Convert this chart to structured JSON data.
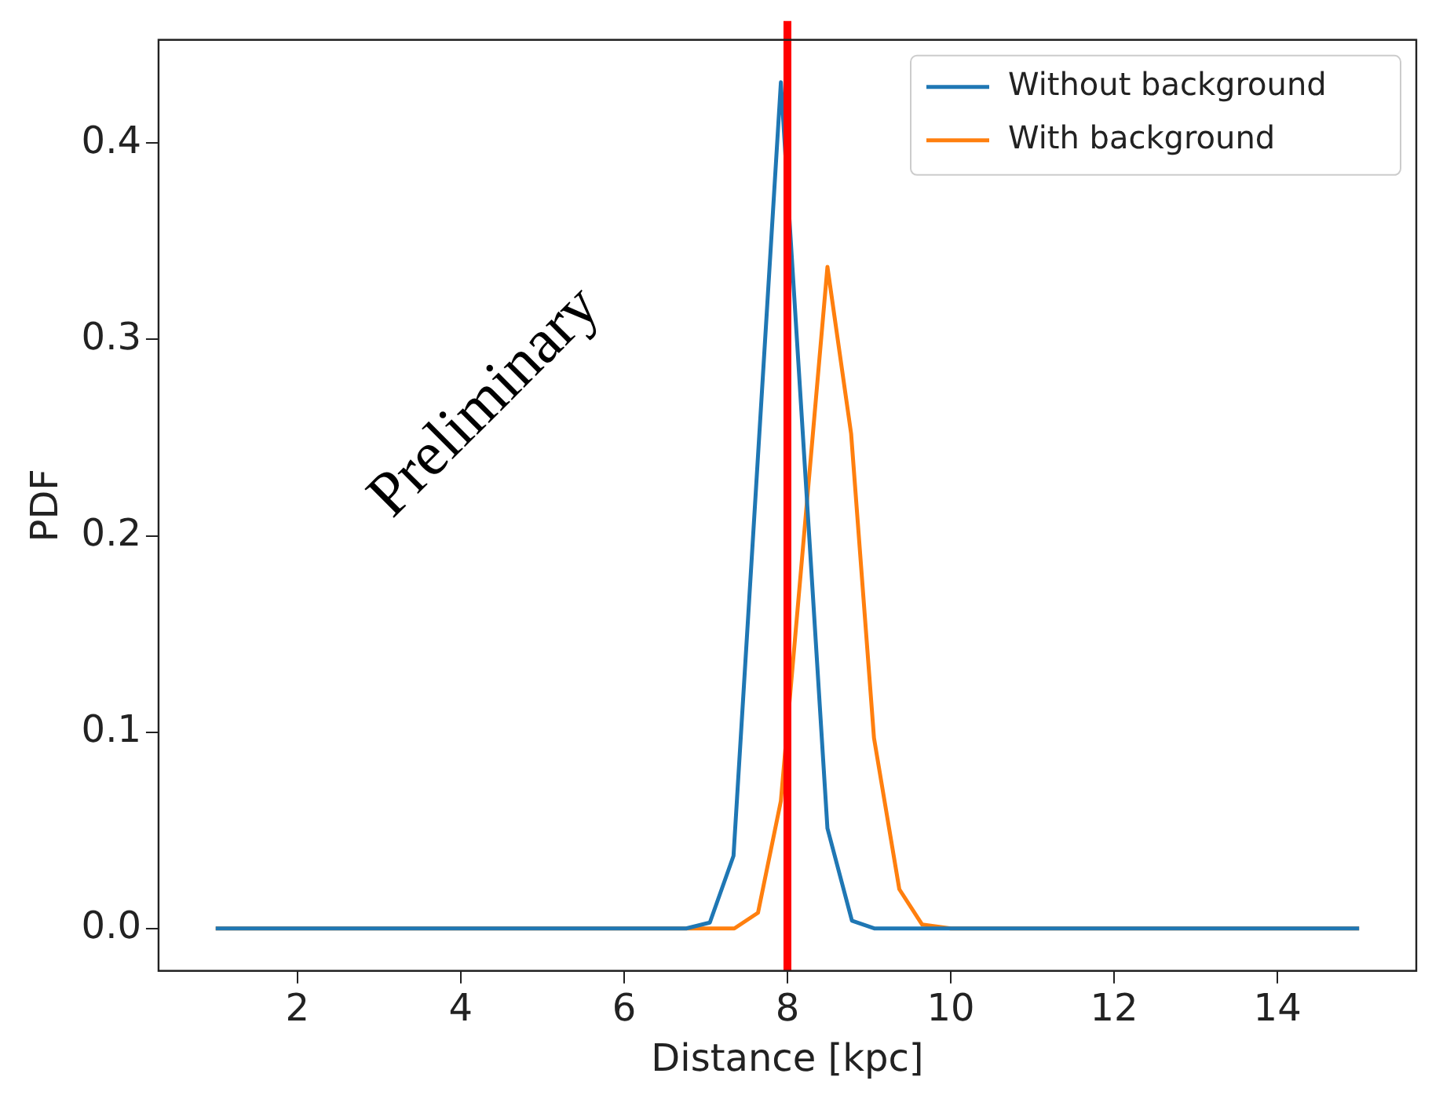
{
  "chart_data": {
    "type": "line",
    "xlabel": "Distance [kpc]",
    "ylabel": "PDF",
    "series": [
      {
        "name": "Without background",
        "color": "#1f77b4",
        "x": [
          1,
          6.76,
          7.05,
          7.34,
          7.92,
          8.49,
          8.79,
          9.07,
          15
        ],
        "values": [
          0,
          0,
          0.003,
          0.037,
          0.431,
          0.051,
          0.004,
          0,
          0
        ]
      },
      {
        "name": "With background",
        "color": "#ff7f0e",
        "x": [
          1,
          7.35,
          7.64,
          7.92,
          8.49,
          8.78,
          9.06,
          9.37,
          9.65,
          10,
          15
        ],
        "values": [
          0,
          0,
          0.008,
          0.065,
          0.337,
          0.252,
          0.097,
          0.02,
          0.002,
          0,
          0
        ]
      }
    ],
    "xlim": [
      0.3,
      15.7
    ],
    "xticks": [
      2,
      4,
      6,
      8,
      10,
      12,
      14
    ],
    "ylim": [
      -0.0216,
      0.4526
    ],
    "yticks": [
      {
        "value": 0,
        "label": "0.0"
      },
      0.1,
      0.2,
      0.3,
      0.4
    ],
    "ref_lines": [
      {
        "axis": "x",
        "value": 8,
        "color": "#ff0000"
      }
    ],
    "annotations": [
      "Preliminary"
    ],
    "legend": "top right",
    "grid": false,
    "marker": "none",
    "line_style": "solid"
  }
}
